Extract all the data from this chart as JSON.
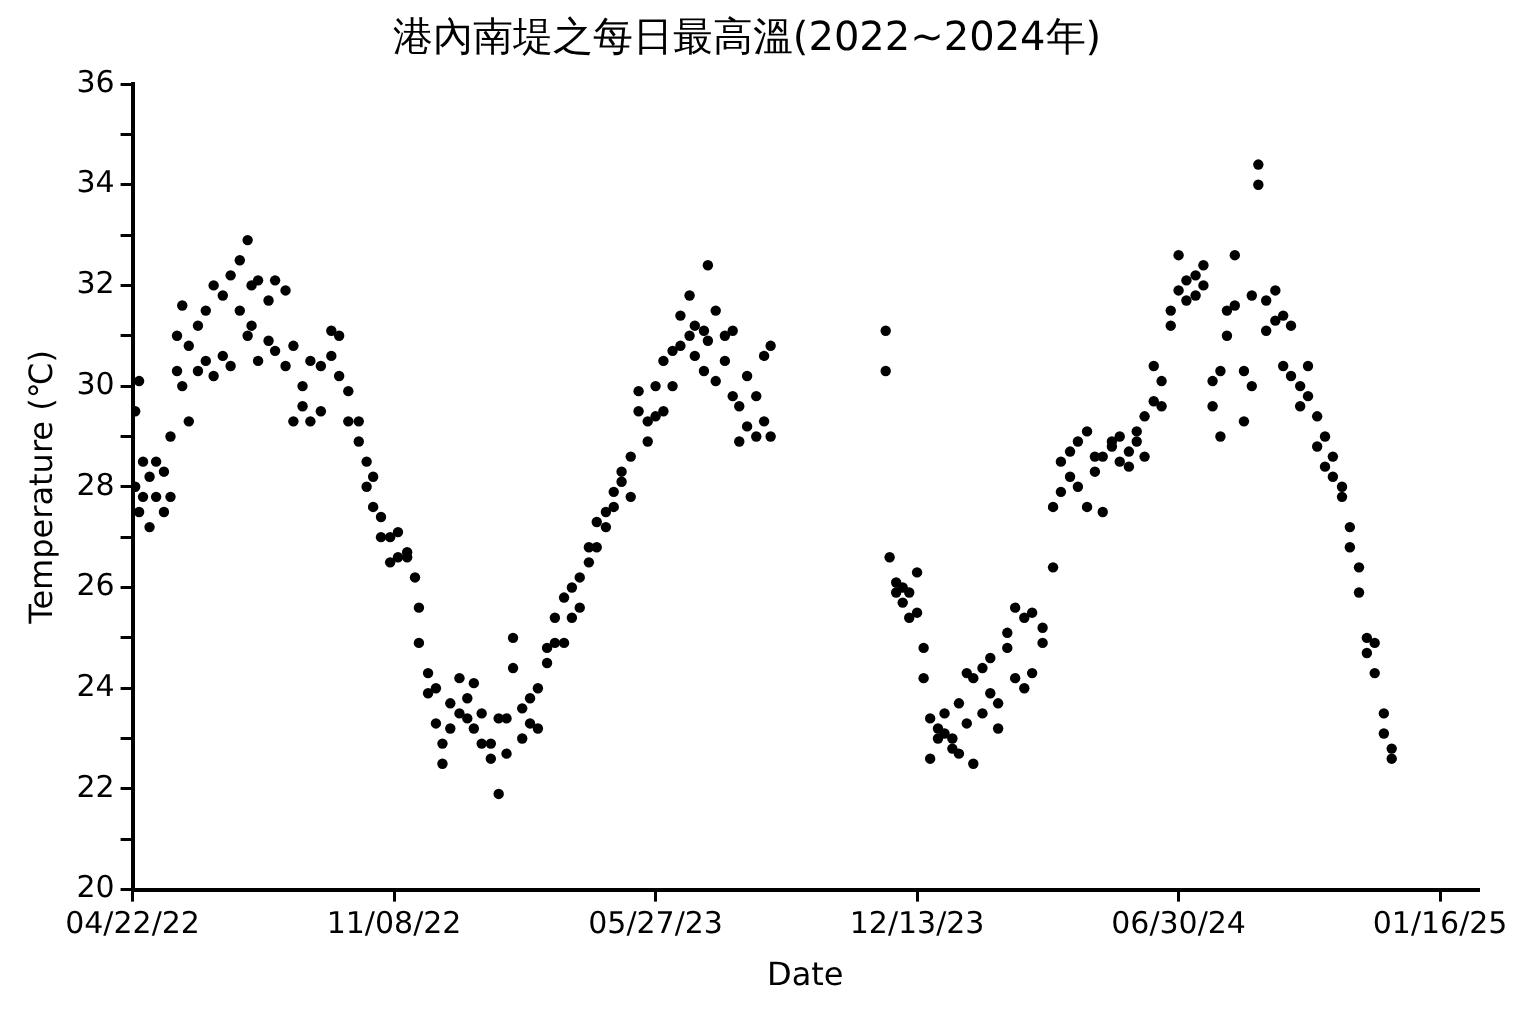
{
  "chart_data": {
    "type": "scatter",
    "title": "港內南堤之每日最高溫(2022~2024年)",
    "xlabel": "Date",
    "ylabel": "Temperature (℃)",
    "xlim": [
      "2022-04-22",
      "2025-02-14"
    ],
    "xticks": [
      {
        "value": "2022-04-22",
        "label": "04/22/22"
      },
      {
        "value": "2022-11-08",
        "label": "11/08/22"
      },
      {
        "value": "2023-05-27",
        "label": "05/27/23"
      },
      {
        "value": "2023-12-13",
        "label": "12/13/23"
      },
      {
        "value": "2024-06-30",
        "label": "06/30/24"
      },
      {
        "value": "2025-01-16",
        "label": "01/16/25"
      }
    ],
    "ylim": [
      20,
      36
    ],
    "yticks": [
      20,
      {
        "value": 21,
        "label": null
      },
      22,
      {
        "value": 23,
        "label": null
      },
      24,
      {
        "value": 25,
        "label": null
      },
      26,
      {
        "value": 27,
        "label": null
      },
      28,
      {
        "value": 29,
        "label": null
      },
      30,
      {
        "value": 31,
        "label": null
      },
      32,
      {
        "value": 33,
        "label": null
      },
      34,
      {
        "value": 35,
        "label": null
      },
      36
    ],
    "grid": false,
    "legend": false,
    "marker": "circle",
    "series": [
      {
        "color": "#000000",
        "x": [
          "2022-04-24",
          "2022-04-24",
          "2022-04-27",
          "2022-04-27",
          "2022-04-30",
          "2022-04-30",
          "2022-05-05",
          "2022-05-05",
          "2022-05-10",
          "2022-05-10",
          "2022-05-16",
          "2022-05-16",
          "2022-05-21",
          "2022-05-21",
          "2022-05-26",
          "2022-05-26",
          "2022-05-30",
          "2022-05-30",
          "2022-06-04",
          "2022-06-04",
          "2022-06-11",
          "2022-06-11",
          "2022-06-17",
          "2022-06-17",
          "2022-06-23",
          "2022-06-23",
          "2022-06-30",
          "2022-06-30",
          "2022-07-06",
          "2022-07-06",
          "2022-07-13",
          "2022-07-13",
          "2022-07-19",
          "2022-07-19",
          "2022-07-22",
          "2022-07-22",
          "2022-07-27",
          "2022-07-27",
          "2022-08-04",
          "2022-08-04",
          "2022-08-09",
          "2022-08-09",
          "2022-08-17",
          "2022-08-17",
          "2022-08-23",
          "2022-08-23",
          "2022-08-30",
          "2022-08-30",
          "2022-09-05",
          "2022-09-05",
          "2022-09-13",
          "2022-09-13",
          "2022-09-21",
          "2022-09-21",
          "2022-09-27",
          "2022-09-27",
          "2022-10-04",
          "2022-10-04",
          "2022-10-12",
          "2022-10-12",
          "2022-10-18",
          "2022-10-18",
          "2022-10-23",
          "2022-10-23",
          "2022-10-29",
          "2022-10-29",
          "2022-11-05",
          "2022-11-05",
          "2022-11-11",
          "2022-11-11",
          "2022-11-18",
          "2022-11-18",
          "2022-11-24",
          "2022-11-27",
          "2022-11-27",
          "2022-12-04",
          "2022-12-04",
          "2022-12-10",
          "2022-12-10",
          "2022-12-15",
          "2022-12-15",
          "2022-12-21",
          "2022-12-21",
          "2022-12-28",
          "2022-12-28",
          "2023-01-03",
          "2023-01-03",
          "2023-01-08",
          "2023-01-08",
          "2023-01-14",
          "2023-01-14",
          "2023-01-21",
          "2023-01-21",
          "2023-01-27",
          "2023-01-27",
          "2023-02-02",
          "2023-02-02",
          "2023-02-07",
          "2023-02-07",
          "2023-02-14",
          "2023-02-14",
          "2023-02-20",
          "2023-02-20",
          "2023-02-26",
          "2023-02-26",
          "2023-03-05",
          "2023-03-05",
          "2023-03-11",
          "2023-03-11",
          "2023-03-18",
          "2023-03-18",
          "2023-03-24",
          "2023-03-24",
          "2023-03-30",
          "2023-03-30",
          "2023-04-06",
          "2023-04-06",
          "2023-04-12",
          "2023-04-12",
          "2023-04-19",
          "2023-04-19",
          "2023-04-25",
          "2023-04-25",
          "2023-05-01",
          "2023-05-01",
          "2023-05-08",
          "2023-05-08",
          "2023-05-14",
          "2023-05-14",
          "2023-05-21",
          "2023-05-21",
          "2023-05-27",
          "2023-05-27",
          "2023-06-02",
          "2023-06-02",
          "2023-06-09",
          "2023-06-09",
          "2023-06-15",
          "2023-06-15",
          "2023-06-22",
          "2023-06-22",
          "2023-06-26",
          "2023-06-26",
          "2023-07-03",
          "2023-07-03",
          "2023-07-06",
          "2023-07-06",
          "2023-07-12",
          "2023-07-12",
          "2023-07-19",
          "2023-07-19",
          "2023-07-25",
          "2023-07-25",
          "2023-07-30",
          "2023-07-30",
          "2023-08-05",
          "2023-08-05",
          "2023-08-12",
          "2023-08-12",
          "2023-08-18",
          "2023-08-18",
          "2023-08-23",
          "2023-08-23",
          "2023-11-19",
          "2023-11-19",
          "2023-11-22",
          "2023-11-27",
          "2023-11-27",
          "2023-12-02",
          "2023-12-02",
          "2023-12-07",
          "2023-12-07",
          "2023-12-13",
          "2023-12-13",
          "2023-12-18",
          "2023-12-18",
          "2023-12-23",
          "2023-12-23",
          "2023-12-29",
          "2023-12-29",
          "2024-01-03",
          "2024-01-03",
          "2024-01-09",
          "2024-01-09",
          "2024-01-14",
          "2024-01-14",
          "2024-01-20",
          "2024-01-20",
          "2024-01-25",
          "2024-01-25",
          "2024-02-01",
          "2024-02-01",
          "2024-02-07",
          "2024-02-07",
          "2024-02-13",
          "2024-02-13",
          "2024-02-20",
          "2024-02-20",
          "2024-02-26",
          "2024-02-26",
          "2024-03-04",
          "2024-03-04",
          "2024-03-10",
          "2024-03-10",
          "2024-03-18",
          "2024-03-18",
          "2024-03-26",
          "2024-03-26",
          "2024-04-01",
          "2024-04-01",
          "2024-04-08",
          "2024-04-08",
          "2024-04-14",
          "2024-04-14",
          "2024-04-21",
          "2024-04-21",
          "2024-04-27",
          "2024-04-27",
          "2024-05-03",
          "2024-05-03",
          "2024-05-10",
          "2024-05-10",
          "2024-05-16",
          "2024-05-16",
          "2024-05-23",
          "2024-05-23",
          "2024-05-29",
          "2024-05-29",
          "2024-06-04",
          "2024-06-04",
          "2024-06-11",
          "2024-06-11",
          "2024-06-17",
          "2024-06-17",
          "2024-06-24",
          "2024-06-24",
          "2024-06-30",
          "2024-06-30",
          "2024-07-06",
          "2024-07-06",
          "2024-07-13",
          "2024-07-13",
          "2024-07-19",
          "2024-07-19",
          "2024-07-26",
          "2024-07-26",
          "2024-08-01",
          "2024-08-01",
          "2024-08-06",
          "2024-08-06",
          "2024-08-12",
          "2024-08-12",
          "2024-08-19",
          "2024-08-19",
          "2024-08-25",
          "2024-08-25",
          "2024-08-30",
          "2024-08-30",
          "2024-09-05",
          "2024-09-05",
          "2024-09-12",
          "2024-09-12",
          "2024-09-18",
          "2024-09-18",
          "2024-09-24",
          "2024-09-24",
          "2024-10-01",
          "2024-10-01",
          "2024-10-07",
          "2024-10-07",
          "2024-10-14",
          "2024-10-14",
          "2024-10-20",
          "2024-10-20",
          "2024-10-26",
          "2024-10-26",
          "2024-11-02",
          "2024-11-02",
          "2024-11-08",
          "2024-11-08",
          "2024-11-15",
          "2024-11-15",
          "2024-11-21",
          "2024-11-21",
          "2024-11-27",
          "2024-11-27",
          "2024-12-04",
          "2024-12-04",
          "2024-12-10",
          "2024-12-10"
        ],
        "values": [
          28.0,
          29.5,
          30.1,
          27.5,
          28.5,
          27.8,
          27.2,
          28.2,
          27.8,
          28.5,
          28.3,
          27.5,
          29.0,
          27.8,
          30.3,
          31.0,
          31.6,
          30.0,
          30.8,
          29.3,
          30.3,
          31.2,
          31.5,
          30.5,
          32.0,
          30.2,
          31.8,
          30.6,
          32.2,
          30.4,
          31.5,
          32.5,
          32.9,
          31.0,
          31.2,
          32.0,
          32.1,
          30.5,
          31.7,
          30.9,
          32.1,
          30.7,
          31.9,
          30.4,
          30.8,
          29.3,
          29.6,
          30.0,
          29.3,
          30.5,
          30.4,
          29.5,
          31.1,
          30.6,
          31.0,
          30.2,
          29.9,
          29.3,
          29.3,
          28.9,
          28.5,
          28.0,
          28.2,
          27.6,
          27.4,
          27.0,
          27.0,
          26.5,
          26.6,
          27.1,
          26.6,
          26.7,
          26.2,
          25.6,
          24.9,
          24.3,
          23.9,
          24.0,
          23.3,
          22.9,
          22.5,
          23.7,
          23.2,
          24.2,
          23.5,
          23.4,
          23.8,
          24.1,
          23.2,
          22.9,
          23.5,
          22.9,
          22.6,
          23.4,
          21.9,
          22.7,
          23.4,
          24.4,
          25.0,
          23.0,
          23.6,
          23.3,
          23.8,
          24.0,
          23.2,
          24.5,
          24.8,
          24.9,
          25.4,
          25.8,
          24.9,
          26.0,
          25.4,
          25.6,
          26.2,
          26.8,
          26.5,
          27.3,
          26.8,
          27.5,
          27.2,
          27.6,
          27.9,
          28.1,
          28.3,
          28.6,
          27.8,
          29.5,
          29.9,
          29.3,
          28.9,
          30.0,
          29.4,
          30.5,
          29.5,
          30.7,
          30.0,
          31.4,
          30.8,
          31.8,
          31.0,
          31.2,
          30.6,
          31.1,
          30.3,
          32.4,
          30.9,
          31.5,
          30.1,
          31.0,
          30.5,
          31.1,
          29.8,
          29.6,
          28.9,
          30.2,
          29.2,
          29.8,
          29.0,
          30.6,
          29.3,
          30.8,
          29.0,
          31.1,
          30.3,
          26.6,
          25.9,
          26.1,
          25.7,
          26.0,
          25.4,
          25.9,
          26.3,
          25.5,
          24.8,
          24.2,
          23.4,
          22.6,
          23.0,
          23.2,
          23.5,
          23.1,
          23.0,
          22.8,
          23.7,
          22.7,
          24.3,
          23.3,
          24.2,
          22.5,
          23.5,
          24.4,
          24.6,
          23.9,
          23.7,
          23.2,
          25.1,
          24.8,
          25.6,
          24.2,
          24.0,
          25.4,
          24.3,
          25.5,
          25.2,
          24.9,
          26.4,
          27.6,
          27.9,
          28.5,
          28.7,
          28.2,
          28.9,
          28.0,
          29.1,
          27.6,
          28.3,
          28.6,
          28.6,
          27.5,
          28.8,
          28.9,
          29.0,
          28.5,
          28.4,
          28.7,
          28.9,
          29.1,
          28.6,
          29.4,
          29.7,
          30.4,
          29.6,
          30.1,
          31.2,
          31.5,
          31.9,
          32.6,
          31.7,
          32.1,
          32.2,
          31.8,
          32.4,
          32.0,
          30.1,
          29.6,
          29.0,
          30.3,
          31.5,
          31.0,
          32.6,
          31.6,
          30.3,
          29.3,
          30.0,
          31.8,
          34.4,
          34.0,
          31.7,
          31.1,
          31.9,
          31.3,
          31.4,
          30.4,
          31.2,
          30.2,
          30.0,
          29.6,
          30.4,
          29.8,
          29.4,
          28.8,
          29.0,
          28.4,
          28.6,
          28.2,
          28.0,
          27.8,
          27.2,
          26.8,
          26.4,
          25.9,
          25.0,
          24.7,
          24.9,
          24.3,
          23.5,
          23.1,
          22.8,
          22.6
        ]
      }
    ]
  }
}
